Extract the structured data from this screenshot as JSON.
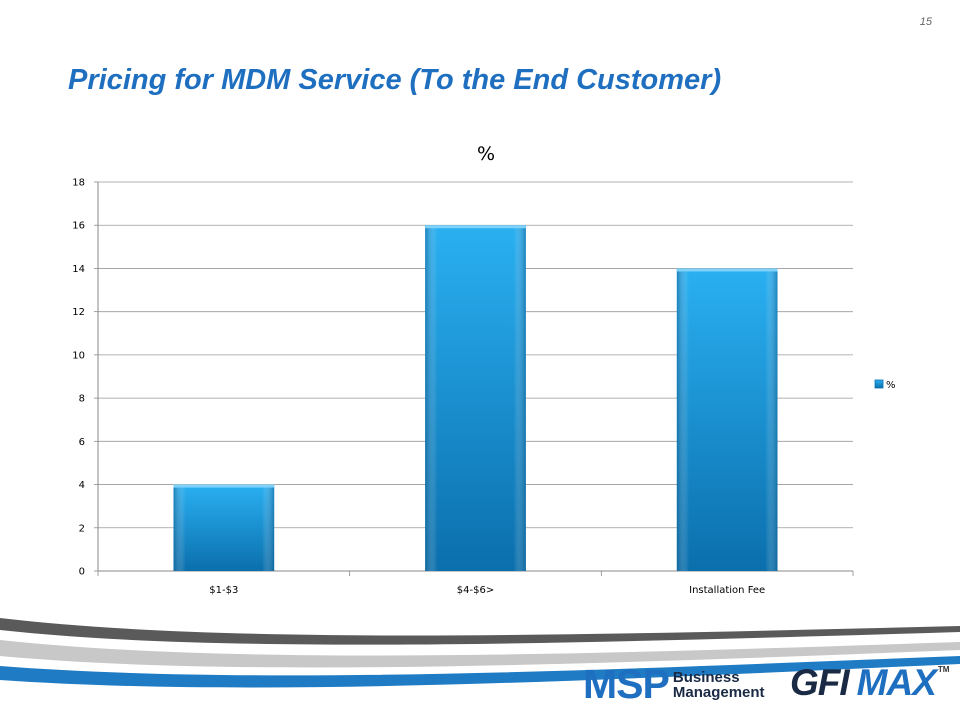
{
  "slide": {
    "page_number": "15",
    "title": "Pricing for MDM Service (To the End Customer)"
  },
  "logos": {
    "msp_mark": "MSP",
    "msp_line1": "Business",
    "msp_line2": "Management",
    "gfi_word": "GFI",
    "max_word": "MAX",
    "trademark": "TM"
  },
  "colors": {
    "title": "#1f6fc0",
    "bar_top": "#2ab0f2",
    "bar_bottom": "#0b6fac",
    "grid": "#9a9a9a",
    "swoosh_dark": "#5a5a5a",
    "swoosh_light": "#c8c8c8",
    "swoosh_blue": "#1f7bc4"
  },
  "chart_data": {
    "type": "bar",
    "title": "%",
    "categories": [
      "$1-$3",
      "$4-$6>",
      "Installation Fee"
    ],
    "series": [
      {
        "name": "%",
        "values": [
          4,
          16,
          14
        ]
      }
    ],
    "xlabel": "",
    "ylabel": "",
    "ylim": [
      0,
      18
    ],
    "yticks": [
      0,
      2,
      4,
      6,
      8,
      10,
      12,
      14,
      16,
      18
    ],
    "grid": true,
    "legend": "right"
  }
}
